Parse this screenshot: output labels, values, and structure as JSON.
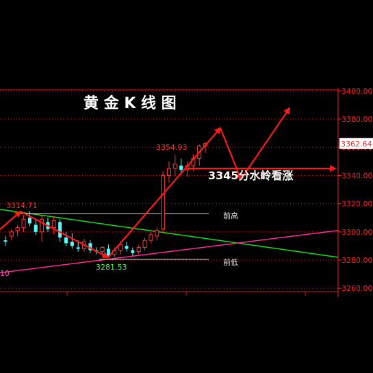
{
  "chart_data": {
    "type": "candlestick",
    "title": "黄 金 K 线 图",
    "yaxis": {
      "ticks": [
        "3400.00",
        "3380.00",
        "3360.00",
        "3340.00",
        "3320.00",
        "3300.00",
        "3280.00",
        "3260.00"
      ],
      "tick_values": [
        3400,
        3380,
        3360,
        3340,
        3320,
        3300,
        3280,
        3260
      ],
      "current_price": "3362.64",
      "ylim": [
        3250,
        3402
      ]
    },
    "candles": [
      {
        "o": 3294,
        "h": 3297,
        "l": 3290,
        "c": 3293
      },
      {
        "o": 3297,
        "h": 3302,
        "l": 3294,
        "c": 3300
      },
      {
        "o": 3301,
        "h": 3305,
        "l": 3297,
        "c": 3303
      },
      {
        "o": 3303,
        "h": 3312,
        "l": 3300,
        "c": 3309
      },
      {
        "o": 3310,
        "h": 3314.71,
        "l": 3304,
        "c": 3306
      },
      {
        "o": 3305,
        "h": 3308,
        "l": 3298,
        "c": 3300
      },
      {
        "o": 3300,
        "h": 3312,
        "l": 3293,
        "c": 3309
      },
      {
        "o": 3307,
        "h": 3310,
        "l": 3300,
        "c": 3302
      },
      {
        "o": 3303,
        "h": 3311,
        "l": 3298,
        "c": 3308
      },
      {
        "o": 3307,
        "h": 3309,
        "l": 3293,
        "c": 3296
      },
      {
        "o": 3296,
        "h": 3300,
        "l": 3290,
        "c": 3292
      },
      {
        "o": 3293,
        "h": 3299,
        "l": 3288,
        "c": 3290
      },
      {
        "o": 3289,
        "h": 3294,
        "l": 3286,
        "c": 3288
      },
      {
        "o": 3288,
        "h": 3295,
        "l": 3286,
        "c": 3293
      },
      {
        "o": 3292,
        "h": 3294,
        "l": 3285,
        "c": 3287
      },
      {
        "o": 3287,
        "h": 3289,
        "l": 3284,
        "c": 3286
      },
      {
        "o": 3286,
        "h": 3290,
        "l": 3283,
        "c": 3289
      },
      {
        "o": 3288,
        "h": 3291,
        "l": 3281.53,
        "c": 3283
      },
      {
        "o": 3284,
        "h": 3289,
        "l": 3282,
        "c": 3287
      },
      {
        "o": 3287,
        "h": 3293,
        "l": 3284,
        "c": 3291
      },
      {
        "o": 3290,
        "h": 3293,
        "l": 3286,
        "c": 3288
      },
      {
        "o": 3287,
        "h": 3289,
        "l": 3283,
        "c": 3285
      },
      {
        "o": 3286,
        "h": 3291,
        "l": 3284,
        "c": 3289
      },
      {
        "o": 3289,
        "h": 3296,
        "l": 3287,
        "c": 3294
      },
      {
        "o": 3294,
        "h": 3300,
        "l": 3292,
        "c": 3298
      },
      {
        "o": 3297,
        "h": 3303,
        "l": 3294,
        "c": 3301
      },
      {
        "o": 3302,
        "h": 3343,
        "l": 3300,
        "c": 3340
      },
      {
        "o": 3340,
        "h": 3350,
        "l": 3335,
        "c": 3345
      },
      {
        "o": 3345,
        "h": 3354.93,
        "l": 3340,
        "c": 3348
      },
      {
        "o": 3347,
        "h": 3352,
        "l": 3341,
        "c": 3344
      },
      {
        "o": 3344,
        "h": 3350,
        "l": 3339,
        "c": 3347
      },
      {
        "o": 3347,
        "h": 3355,
        "l": 3343,
        "c": 3352
      },
      {
        "o": 3352,
        "h": 3362,
        "l": 3347,
        "c": 3361
      },
      {
        "o": 3361,
        "h": 3364,
        "l": 3356,
        "c": 3362.64
      }
    ],
    "annotations": {
      "high_label": "3314.71",
      "low_label": "3281.53",
      "peak_label": "3354.93",
      "support_text": "3345分水岭看涨",
      "prev_high": "前高",
      "prev_low": "前低",
      "left_cut_label": "10"
    },
    "levels": {
      "prev_high_value": 3313,
      "prev_low_value": 3280.5,
      "support_value": 3345
    },
    "colors": {
      "up": "#ff3b3b",
      "down": "#54ffff",
      "axis": "#ff2020",
      "grid": "#cc2020",
      "arrow": "#ff1a1a",
      "green_line": "#17e017",
      "pink_line": "#ff2b9a",
      "high_low_lines": "#d8d8d8",
      "high_label": "#ff3333",
      "low_label": "#40ff40",
      "title": "#ffffff"
    }
  }
}
